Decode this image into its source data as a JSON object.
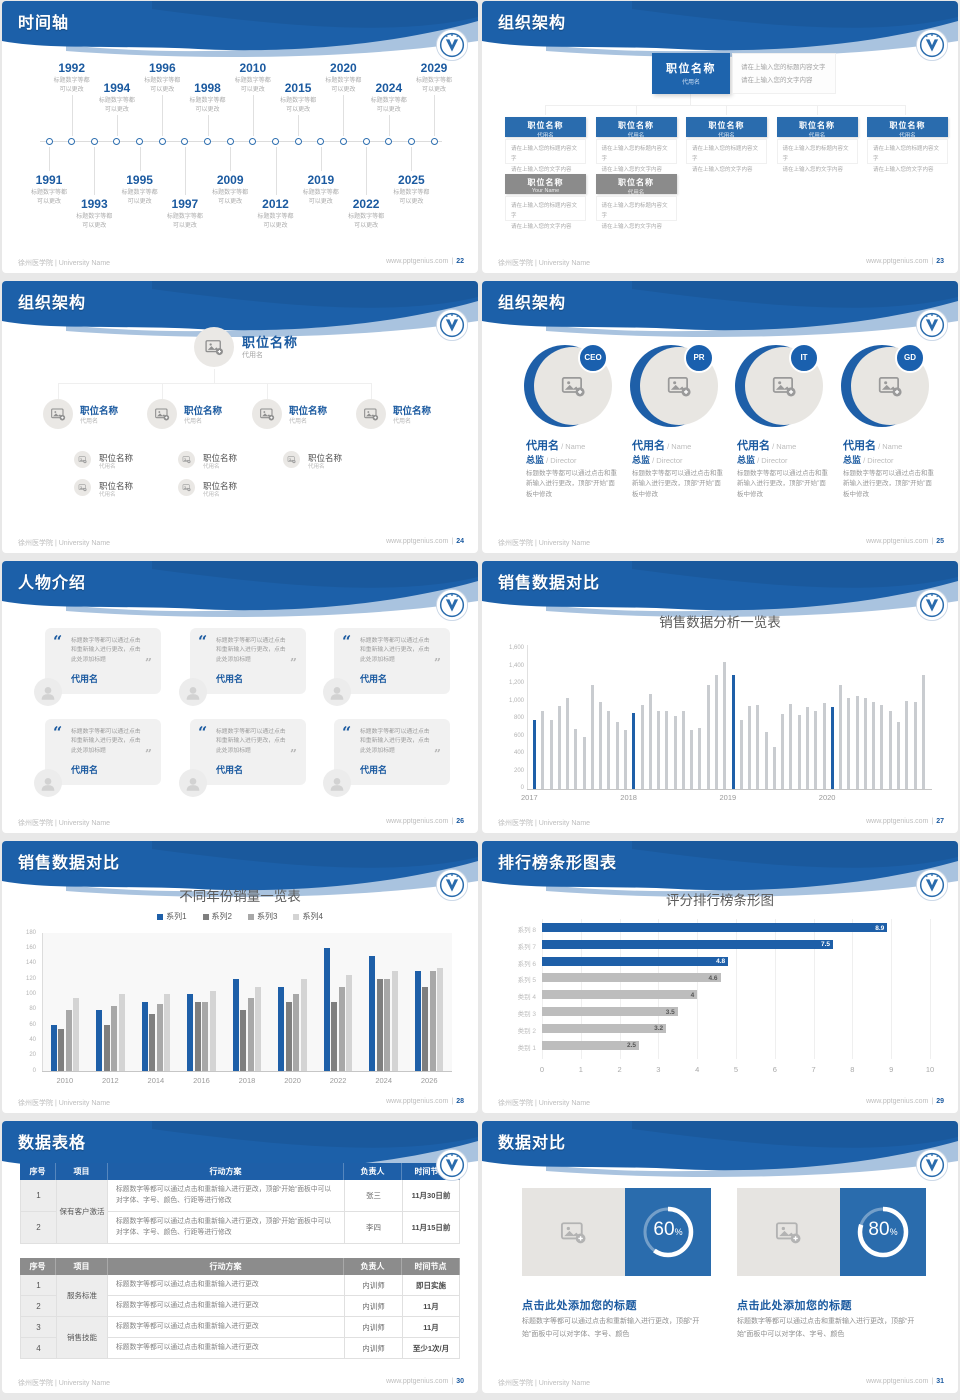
{
  "footer": {
    "left": "徐州医学院 | University Name",
    "site": "www.pptgenius.com",
    "sep": "|"
  },
  "theme": {
    "blue": "#1c60a9",
    "accent_blue": "#1e5fa8",
    "text_blue": "#1b5aa0",
    "light_blue": "#a9c3df",
    "gray_bar": "#c9ccd0",
    "gray_box": "#8c8c8c"
  },
  "slides": [
    {
      "type": "timeline",
      "title": "时间轴",
      "page": "22",
      "caption": [
        "标题数字等都",
        "可以更改"
      ],
      "items": [
        {
          "year": "1991",
          "side": "bottom",
          "level": 1
        },
        {
          "year": "1992",
          "side": "top",
          "level": 2
        },
        {
          "year": "1993",
          "side": "bottom",
          "level": 2
        },
        {
          "year": "1994",
          "side": "top",
          "level": 1
        },
        {
          "year": "1995",
          "side": "bottom",
          "level": 1
        },
        {
          "year": "1996",
          "side": "top",
          "level": 2
        },
        {
          "year": "1997",
          "side": "bottom",
          "level": 2
        },
        {
          "year": "1998",
          "side": "top",
          "level": 1
        },
        {
          "year": "2009",
          "side": "bottom",
          "level": 1
        },
        {
          "year": "2010",
          "side": "top",
          "level": 2
        },
        {
          "year": "2012",
          "side": "bottom",
          "level": 2
        },
        {
          "year": "2015",
          "side": "top",
          "level": 1
        },
        {
          "year": "2019",
          "side": "bottom",
          "level": 1
        },
        {
          "year": "2020",
          "side": "top",
          "level": 2
        },
        {
          "year": "2022",
          "side": "bottom",
          "level": 2
        },
        {
          "year": "2024",
          "side": "top",
          "level": 1
        },
        {
          "year": "2025",
          "side": "bottom",
          "level": 1
        },
        {
          "year": "2029",
          "side": "top",
          "level": 2
        }
      ]
    },
    {
      "type": "org_boxes",
      "title": "组织架构",
      "page": "23",
      "root": {
        "title": "职位名称",
        "sub": "代用名"
      },
      "root_note": [
        "请在上输入您的标题内容文字",
        "请在上输入您的文字内容"
      ],
      "note": [
        "请在上输入您的标题内容文字",
        "请在上输入您的文字内容"
      ],
      "row1": [
        {
          "title": "职位名称",
          "sub": "代用名"
        },
        {
          "title": "职位名称",
          "sub": "代用名"
        },
        {
          "title": "职位名称",
          "sub": "代用名"
        },
        {
          "title": "职位名称",
          "sub": "代用名"
        },
        {
          "title": "职位名称",
          "sub": "代用名"
        }
      ],
      "row2": [
        {
          "title": "职位名称",
          "sub": "Your Name"
        },
        {
          "title": "职位名称",
          "sub": "代用名"
        }
      ]
    },
    {
      "type": "org_circles",
      "title": "组织架构",
      "page": "24",
      "root": {
        "title": "职位名称",
        "sub": "代用名"
      },
      "child": {
        "title": "职位名称",
        "sub": "代用名"
      },
      "groups": [
        {
          "title": "职位名称",
          "sub": "代用名",
          "children": 2
        },
        {
          "title": "职位名称",
          "sub": "代用名",
          "children": 2
        },
        {
          "title": "职位名称",
          "sub": "代用名",
          "children": 1
        },
        {
          "title": "职位名称",
          "sub": "代用名",
          "children": 0
        }
      ]
    },
    {
      "type": "team_circles",
      "title": "组织架构",
      "page": "25",
      "badges": [
        "CEO",
        "PR",
        "IT",
        "GD"
      ],
      "name_cn": "代用名",
      "name_en": "Name",
      "role_cn": "总监",
      "role_en": "Director",
      "body": "标题数字等都可以通过点击和重新输入进行更改，顶部“开始”面板中修改"
    },
    {
      "type": "quotes",
      "title": "人物介绍",
      "page": "26",
      "quote": "标题数字等都可以通过点击和重新输入进行更改，点击此处添加标题",
      "name": "代用名",
      "count": 6
    },
    {
      "type": "chart_mono",
      "title": "销售数据对比",
      "page": "27",
      "chart_ref": 0
    },
    {
      "type": "chart_group",
      "title": "销售数据对比",
      "page": "28",
      "chart_ref": 1
    },
    {
      "type": "chart_hbar",
      "title": "排行榜条形图表",
      "page": "29",
      "chart_ref": 2
    },
    {
      "type": "tables",
      "title": "数据表格",
      "page": "30",
      "tables": [
        {
          "header_bg": "blue",
          "columns": [
            "序号",
            "项目",
            "行动方案",
            "负责人",
            "时间节点"
          ],
          "groups": [
            {
              "project": "保有客户激活",
              "rows": [
                {
                  "no": "1",
                  "plan": "标题数字等都可以通过点击和重新输入进行更改，顶部“开始”面板中可以对字体、字号、颜色、行距等进行修改",
                  "owner": "张三",
                  "deadline": "11月30日前"
                },
                {
                  "no": "2",
                  "plan": "标题数字等都可以通过点击和重新输入进行更改，顶部“开始”面板中可以对字体、字号、颜色、行距等进行修改",
                  "owner": "李四",
                  "deadline": "11月15日前"
                }
              ]
            }
          ]
        },
        {
          "header_bg": "gray",
          "columns": [
            "序号",
            "项目",
            "行动方案",
            "负责人",
            "时间节点"
          ],
          "groups": [
            {
              "project": "服务标准",
              "rows": [
                {
                  "no": "1",
                  "plan": "标题数字等都可以通过点击和重新输入进行更改",
                  "owner": "内训师",
                  "deadline": "即日实施"
                },
                {
                  "no": "2",
                  "plan": "标题数字等都可以通过点击和重新输入进行更改",
                  "owner": "内训师",
                  "deadline": "11月"
                }
              ]
            },
            {
              "project": "销售技能",
              "rows": [
                {
                  "no": "3",
                  "plan": "标题数字等都可以通过点击和重新输入进行更改",
                  "owner": "内训师",
                  "deadline": "11月"
                },
                {
                  "no": "4",
                  "plan": "标题数字等都可以通过点击和重新输入进行更改",
                  "owner": "内训师",
                  "deadline": "至少1次/月"
                }
              ]
            }
          ]
        }
      ]
    },
    {
      "type": "compare",
      "title": "数据对比",
      "page": "31",
      "panels": [
        {
          "percent": 60
        },
        {
          "percent": 80
        }
      ],
      "heading": "点击此处添加您的标题",
      "body": "标题数字等都可以通过点击和重新输入进行更改，顶部“开始”面板中可以对字体、字号、颜色"
    }
  ],
  "chart_data": [
    {
      "type": "bar",
      "title": "销售数据分析一览表",
      "xlabel": "",
      "ylabel": "",
      "ylim": [
        0,
        1600
      ],
      "ytick_interval": 200,
      "ytick_labels": [
        "0",
        "200",
        "400",
        "600",
        "800",
        "1,000",
        "1,200",
        "1,400",
        "1,600"
      ],
      "x_groups": [
        "2017",
        "2018",
        "2019",
        "2020"
      ],
      "bars_per_group": 12,
      "bar_color": "#c9ccd0",
      "highlight_color": "#1e5fa8",
      "highlight_indices": [
        0,
        12,
        24,
        36
      ],
      "values": [
        790,
        890,
        790,
        950,
        1040,
        690,
        600,
        1190,
        990,
        890,
        770,
        670,
        870,
        960,
        1090,
        890,
        890,
        840,
        890,
        670,
        700,
        1190,
        1300,
        1450,
        1300,
        790,
        950,
        960,
        650,
        480,
        860,
        970,
        850,
        940,
        890,
        980,
        940,
        1190,
        1040,
        1060,
        1040,
        990,
        960,
        890,
        770,
        1010,
        1000,
        1300
      ]
    },
    {
      "type": "bar",
      "title": "不同年份销量一览表",
      "categories": [
        "2010",
        "2012",
        "2014",
        "2016",
        "2018",
        "2020",
        "2022",
        "2024",
        "2026"
      ],
      "series": [
        {
          "name": "系列1",
          "color": "#1e5fa8",
          "values": [
            60,
            80,
            90,
            100,
            120,
            110,
            160,
            150,
            130
          ]
        },
        {
          "name": "系列2",
          "color": "#7f7f7f",
          "values": [
            55,
            60,
            75,
            90,
            80,
            90,
            90,
            120,
            110
          ]
        },
        {
          "name": "系列3",
          "color": "#a8a8a8",
          "values": [
            80,
            85,
            88,
            90,
            95,
            100,
            110,
            120,
            130
          ]
        },
        {
          "name": "系列4",
          "color": "#d4d4d4",
          "values": [
            95,
            100,
            100,
            105,
            110,
            120,
            125,
            130,
            135
          ]
        }
      ],
      "ylim": [
        0,
        180
      ],
      "ytick_interval": 20,
      "legend_position": "top",
      "grid": false
    },
    {
      "type": "bar",
      "orientation": "horizontal",
      "title": "评分排行榜条形图",
      "categories": [
        "类别 1",
        "类别 2",
        "类别 3",
        "类别 4",
        "系列 5",
        "系列 6",
        "系列 7",
        "系列 8"
      ],
      "values": [
        2.5,
        3.2,
        3.5,
        4,
        4.6,
        4.8,
        7.5,
        8.9
      ],
      "colors": [
        "#bdbdbd",
        "#bdbdbd",
        "#bdbdbd",
        "#bdbdbd",
        "#bdbdbd",
        "#1e5fa8",
        "#1e5fa8",
        "#1e5fa8"
      ],
      "xlim": [
        0,
        10
      ],
      "xtick_interval": 1,
      "grid": true
    }
  ]
}
